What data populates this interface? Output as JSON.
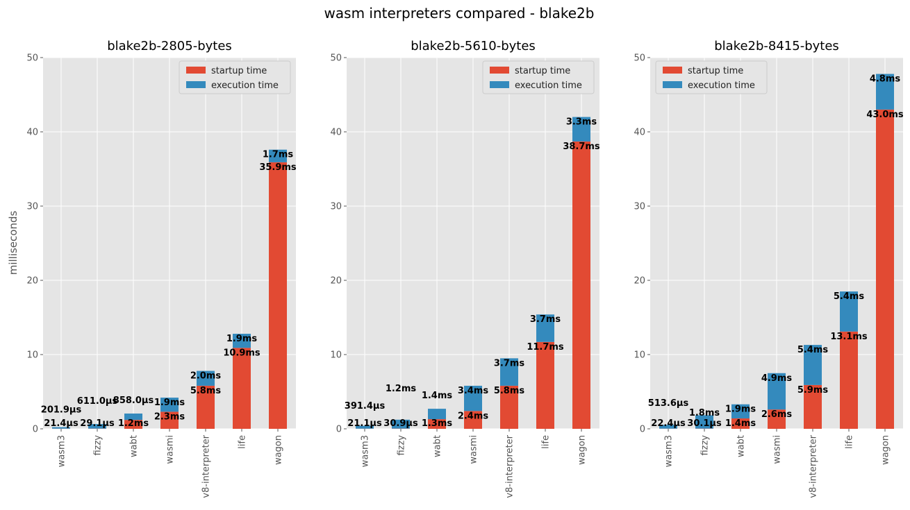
{
  "figure": {
    "title": "wasm interpreters compared - blake2b",
    "ylabel": "milliseconds"
  },
  "colors": {
    "startup": "#E24A33",
    "execution": "#348ABD",
    "axes_bg": "#E5E5E5",
    "grid": "#ffffff"
  },
  "chart_data": [
    {
      "type": "bar",
      "stacked": true,
      "title": "blake2b-2805-bytes",
      "ylim": [
        0,
        50
      ],
      "yticks": [
        0,
        10,
        20,
        30,
        40,
        50
      ],
      "legend": "top-right",
      "categories": [
        "wasm3",
        "fizzy",
        "wabt",
        "wasmi",
        "v8-interpreter",
        "life",
        "wagon"
      ],
      "series": [
        {
          "name": "startup time",
          "values": [
            0.0214,
            0.0291,
            1.2,
            2.3,
            5.8,
            10.9,
            35.9
          ],
          "labels": [
            "21.4µs",
            "29.1µs",
            "1.2ms",
            "2.3ms",
            "5.8ms",
            "10.9ms",
            "35.9ms"
          ]
        },
        {
          "name": "execution time",
          "values": [
            0.2019,
            0.611,
            0.858,
            1.9,
            2.0,
            1.9,
            1.7
          ],
          "labels": [
            "201.9µs",
            "611.0µs",
            "858.0µs",
            "1.9ms",
            "2.0ms",
            "1.9ms",
            "1.7ms"
          ]
        }
      ]
    },
    {
      "type": "bar",
      "stacked": true,
      "title": "blake2b-5610-bytes",
      "ylim": [
        0,
        50
      ],
      "yticks": [
        0,
        10,
        20,
        30,
        40,
        50
      ],
      "legend": "top-right",
      "categories": [
        "wasm3",
        "fizzy",
        "wabt",
        "wasmi",
        "v8-interpreter",
        "life",
        "wagon"
      ],
      "series": [
        {
          "name": "startup time",
          "values": [
            0.0211,
            0.0309,
            1.3,
            2.4,
            5.8,
            11.7,
            38.7
          ],
          "labels": [
            "21.1µs",
            "30.9µs",
            "1.3ms",
            "2.4ms",
            "5.8ms",
            "11.7ms",
            "38.7ms"
          ]
        },
        {
          "name": "execution time",
          "values": [
            0.3914,
            1.2,
            1.4,
            3.4,
            3.7,
            3.7,
            3.3
          ],
          "labels": [
            "391.4µs",
            "1.2ms",
            "1.4ms",
            "3.4ms",
            "3.7ms",
            "3.7ms",
            "3.3ms"
          ]
        }
      ]
    },
    {
      "type": "bar",
      "stacked": true,
      "title": "blake2b-8415-bytes",
      "ylim": [
        0,
        50
      ],
      "yticks": [
        0,
        10,
        20,
        30,
        40,
        50
      ],
      "legend": "top-left",
      "categories": [
        "wasm3",
        "fizzy",
        "wabt",
        "wasmi",
        "v8-interpreter",
        "life",
        "wagon"
      ],
      "series": [
        {
          "name": "startup time",
          "values": [
            0.0224,
            0.0301,
            1.4,
            2.6,
            5.9,
            13.1,
            43.0
          ],
          "labels": [
            "22.4µs",
            "30.1µs",
            "1.4ms",
            "2.6ms",
            "5.9ms",
            "13.1ms",
            "43.0ms"
          ]
        },
        {
          "name": "execution time",
          "values": [
            0.5136,
            1.8,
            1.9,
            4.9,
            5.4,
            5.4,
            4.8
          ],
          "labels": [
            "513.6µs",
            "1.8ms",
            "1.9ms",
            "4.9ms",
            "5.4ms",
            "5.4ms",
            "4.8ms"
          ]
        }
      ]
    }
  ]
}
